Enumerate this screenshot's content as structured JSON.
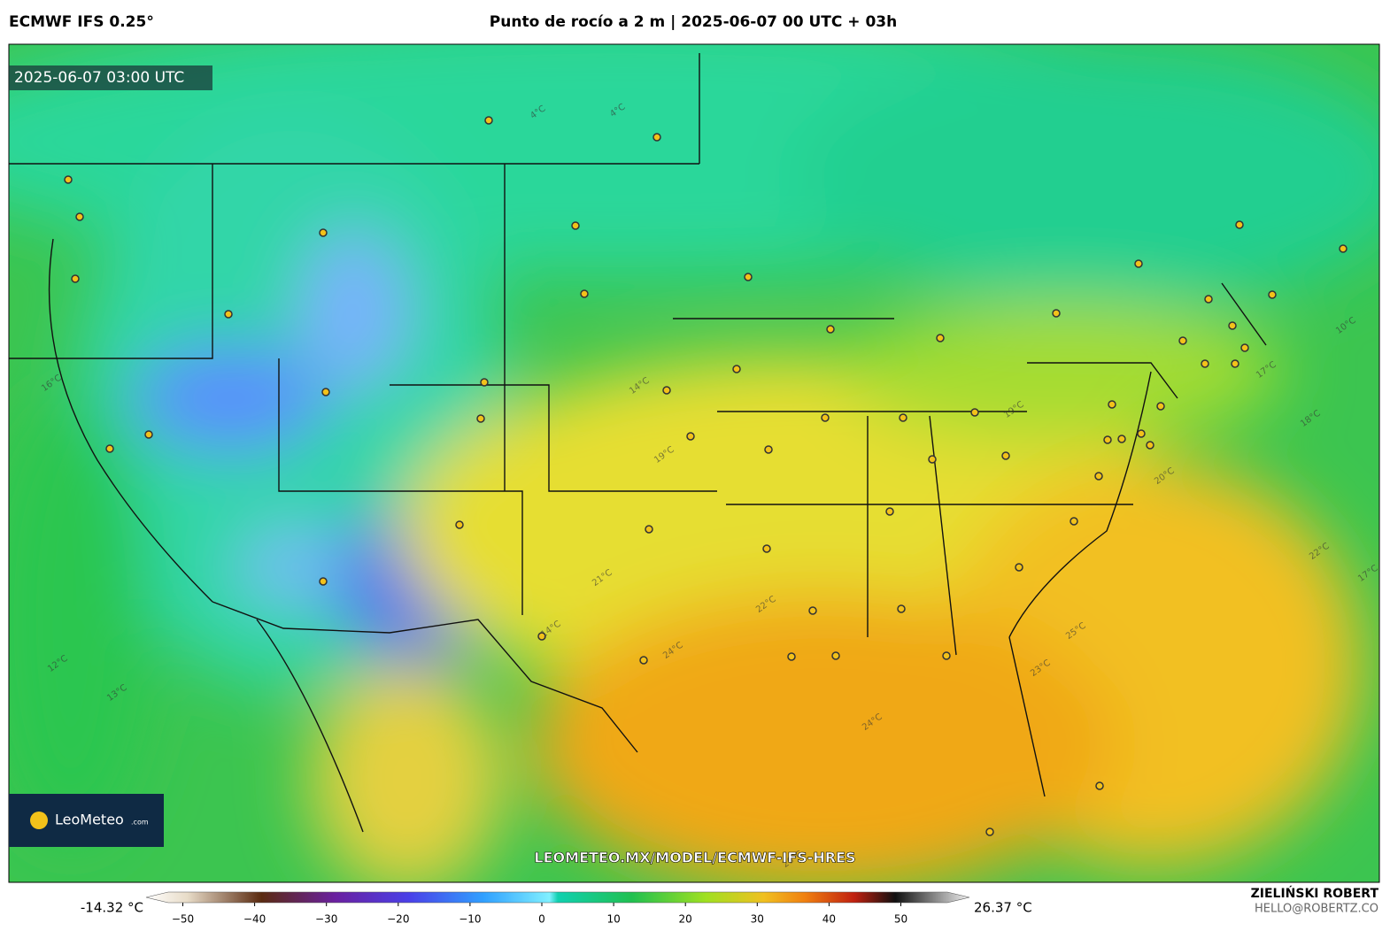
{
  "header": {
    "model": "ECMWF IFS 0.25°",
    "title": "Punto de rocío a 2 m | 2025-06-07 00 UTC + 03h"
  },
  "map": {
    "valid_time": "2025-06-07 03:00 UTC",
    "watermark": "LEOMETEO.MX/MODEL/ECMWF-IFS-HRES",
    "logo": "LeoMeteo",
    "logo_suffix": ".com",
    "contour_labels": [
      "4°C",
      "4°C",
      "14°C",
      "19°C",
      "19°C",
      "21°C",
      "22°C",
      "24°C",
      "24°C",
      "23°C",
      "25°C",
      "22°C",
      "18°C",
      "17°C",
      "16°C",
      "12°C",
      "13°C",
      "10°C",
      "26°C",
      "20°C",
      "17°C",
      "14°C"
    ]
  },
  "colorbar": {
    "min_label": "-14.32 °C",
    "max_label": "26.37 °C",
    "ticks": [
      {
        "value": -50,
        "label": "−50"
      },
      {
        "value": -40,
        "label": "−40"
      },
      {
        "value": -30,
        "label": "−30"
      },
      {
        "value": -20,
        "label": "−20"
      },
      {
        "value": -10,
        "label": "−10"
      },
      0,
      10,
      20,
      30,
      40,
      50
    ]
  },
  "footer": {
    "author": "ZIELIŃSKI ROBERT",
    "email": "HELLO@ROBERTZ.CO"
  }
}
